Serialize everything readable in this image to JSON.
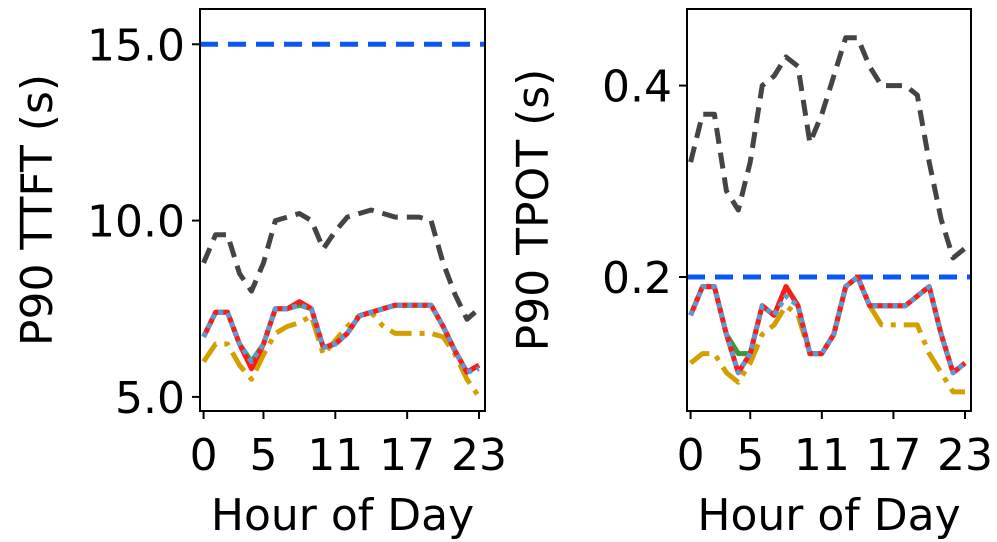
{
  "chart_data": [
    {
      "type": "line",
      "xlabel": "Hour of Day",
      "ylabel": "P90 TTFT (s)",
      "xticks": [
        0,
        5,
        11,
        17,
        23
      ],
      "xtick_labels": [
        "0",
        "5",
        "11",
        "17",
        "23"
      ],
      "xlim": [
        -0.3,
        23.5
      ],
      "ylim": [
        4.6,
        16.0
      ],
      "yticks": [
        5.0,
        10.0,
        15.0
      ],
      "ytick_labels": [
        "5.0",
        "10.0",
        "15.0"
      ],
      "highlight_tick_label": "15.0",
      "slo": 15.0,
      "x": [
        0,
        1,
        2,
        3,
        4,
        5,
        6,
        7,
        8,
        9,
        10,
        11,
        12,
        13,
        14,
        15,
        16,
        17,
        18,
        19,
        20,
        21,
        22,
        23
      ],
      "series": [
        {
          "name": "gray-dashed",
          "color": "#444444",
          "style": "dashed",
          "values": [
            8.8,
            9.6,
            9.6,
            8.5,
            8.0,
            8.8,
            10.0,
            10.1,
            10.2,
            10.0,
            9.2,
            9.7,
            10.1,
            10.2,
            10.3,
            10.2,
            10.1,
            10.1,
            10.1,
            10.0,
            8.8,
            7.9,
            7.2,
            7.5
          ]
        },
        {
          "name": "gold-dashdot",
          "color": "#D4A000",
          "style": "dashdot",
          "values": [
            6.0,
            6.5,
            6.5,
            5.9,
            5.5,
            6.2,
            6.8,
            7.0,
            7.1,
            7.3,
            6.2,
            6.6,
            7.0,
            7.3,
            7.4,
            7.0,
            6.8,
            6.8,
            6.8,
            6.8,
            6.7,
            6.2,
            5.5,
            5.0
          ]
        },
        {
          "name": "green-solid",
          "color": "#3A9A3A",
          "style": "solid",
          "values": [
            6.7,
            7.4,
            7.4,
            6.5,
            6.0,
            6.5,
            7.5,
            7.5,
            7.6,
            7.5,
            6.4,
            6.5,
            6.8,
            7.3,
            7.4,
            7.5,
            7.6,
            7.6,
            7.6,
            7.6,
            7.0,
            6.3,
            5.7,
            5.9
          ]
        },
        {
          "name": "red-solid",
          "color": "#FF1A1A",
          "style": "solid",
          "values": [
            6.7,
            7.4,
            7.4,
            6.5,
            5.8,
            6.5,
            7.5,
            7.5,
            7.7,
            7.5,
            6.4,
            6.5,
            6.8,
            7.3,
            7.4,
            7.5,
            7.6,
            7.6,
            7.6,
            7.6,
            7.0,
            6.3,
            5.7,
            5.9
          ]
        },
        {
          "name": "blue-dotted",
          "color": "#5B9BD5",
          "style": "dotted",
          "values": [
            6.7,
            7.4,
            7.4,
            6.5,
            6.0,
            6.5,
            7.5,
            7.5,
            7.6,
            7.5,
            6.4,
            6.5,
            6.8,
            7.3,
            7.4,
            7.5,
            7.6,
            7.6,
            7.6,
            7.6,
            7.0,
            6.3,
            5.7,
            5.8
          ]
        }
      ]
    },
    {
      "type": "line",
      "xlabel": "Hour of Day",
      "ylabel": "P90 TPOT (s)",
      "xticks": [
        0,
        5,
        11,
        17,
        23
      ],
      "xtick_labels": [
        "0",
        "5",
        "11",
        "17",
        "23"
      ],
      "xlim": [
        -0.3,
        23.5
      ],
      "ylim": [
        0.06,
        0.48
      ],
      "yticks": [
        0.2,
        0.4
      ],
      "ytick_labels": [
        "0.2",
        "0.4"
      ],
      "highlight_tick_label": "0.2",
      "slo": 0.2,
      "x": [
        0,
        1,
        2,
        3,
        4,
        5,
        6,
        7,
        8,
        9,
        10,
        11,
        12,
        13,
        14,
        15,
        16,
        17,
        18,
        19,
        20,
        21,
        22,
        23
      ],
      "series": [
        {
          "name": "gray-dashed",
          "color": "#444444",
          "style": "dashed",
          "values": [
            0.32,
            0.37,
            0.37,
            0.29,
            0.27,
            0.32,
            0.4,
            0.41,
            0.43,
            0.42,
            0.34,
            0.37,
            0.41,
            0.45,
            0.45,
            0.42,
            0.4,
            0.4,
            0.4,
            0.39,
            0.32,
            0.26,
            0.22,
            0.23
          ]
        },
        {
          "name": "gold-dashdot",
          "color": "#D4A000",
          "style": "dashdot",
          "values": [
            0.11,
            0.12,
            0.12,
            0.1,
            0.09,
            0.11,
            0.14,
            0.15,
            0.17,
            0.16,
            0.12,
            0.12,
            0.14,
            0.19,
            0.2,
            0.17,
            0.15,
            0.15,
            0.15,
            0.15,
            0.12,
            0.1,
            0.08,
            0.08
          ]
        },
        {
          "name": "green-solid",
          "color": "#3A9A3A",
          "style": "solid",
          "values": [
            0.16,
            0.19,
            0.19,
            0.14,
            0.12,
            0.12,
            0.17,
            0.16,
            0.19,
            0.17,
            0.12,
            0.12,
            0.14,
            0.19,
            0.2,
            0.17,
            0.17,
            0.17,
            0.17,
            0.18,
            0.19,
            0.14,
            0.1,
            0.11
          ]
        },
        {
          "name": "red-solid",
          "color": "#FF1A1A",
          "style": "solid",
          "values": [
            0.16,
            0.19,
            0.19,
            0.14,
            0.1,
            0.12,
            0.17,
            0.16,
            0.19,
            0.17,
            0.12,
            0.12,
            0.14,
            0.19,
            0.2,
            0.17,
            0.17,
            0.17,
            0.17,
            0.18,
            0.19,
            0.14,
            0.1,
            0.11
          ]
        },
        {
          "name": "blue-dotted",
          "color": "#5B9BD5",
          "style": "dotted",
          "values": [
            0.16,
            0.19,
            0.19,
            0.14,
            0.1,
            0.12,
            0.17,
            0.16,
            0.18,
            0.17,
            0.12,
            0.12,
            0.14,
            0.19,
            0.2,
            0.17,
            0.17,
            0.17,
            0.17,
            0.18,
            0.19,
            0.14,
            0.1,
            0.11
          ]
        }
      ]
    }
  ],
  "colors": {
    "slo_line": "#0B57F5",
    "highlight_label": "#1764F0",
    "axis": "#000000"
  }
}
